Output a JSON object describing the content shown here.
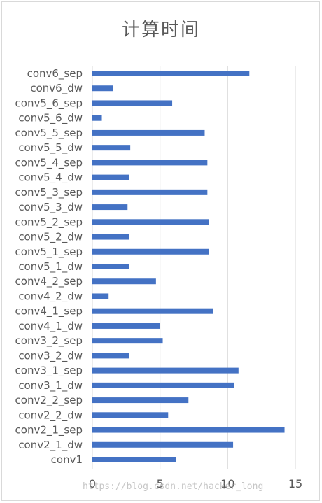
{
  "chart_data": {
    "type": "bar",
    "orientation": "horizontal",
    "title": "计算时间",
    "xlabel": "",
    "ylabel": "",
    "xlim": [
      0,
      15
    ],
    "x_ticks": [
      "0",
      "5",
      "10",
      "15"
    ],
    "grid": true,
    "legend": "none",
    "bar_color": "#4472c4",
    "categories": [
      "conv6_sep",
      "conv6_dw",
      "conv5_6_sep",
      "conv5_6_dw",
      "conv5_5_sep",
      "conv5_5_dw",
      "conv5_4_sep",
      "conv5_4_dw",
      "conv5_3_sep",
      "conv5_3_dw",
      "conv5_2_sep",
      "conv5_2_dw",
      "conv5_1_sep",
      "conv5_1_dw",
      "conv4_2_sep",
      "conv4_2_dw",
      "conv4_1_sep",
      "conv4_1_dw",
      "conv3_2_sep",
      "conv3_2_dw",
      "conv3_1_sep",
      "conv3_1_dw",
      "conv2_2_sep",
      "conv2_2_dw",
      "conv2_1_sep",
      "conv2_1_dw",
      "conv1"
    ],
    "values": [
      11.6,
      1.5,
      5.9,
      0.7,
      8.3,
      2.8,
      8.5,
      2.7,
      8.5,
      2.6,
      8.6,
      2.7,
      8.6,
      2.7,
      4.7,
      1.2,
      8.9,
      5.0,
      5.2,
      2.7,
      10.8,
      10.5,
      7.1,
      5.6,
      14.2,
      10.4,
      6.2
    ]
  },
  "watermark": "https://blog.csdn.net/hacker_long"
}
